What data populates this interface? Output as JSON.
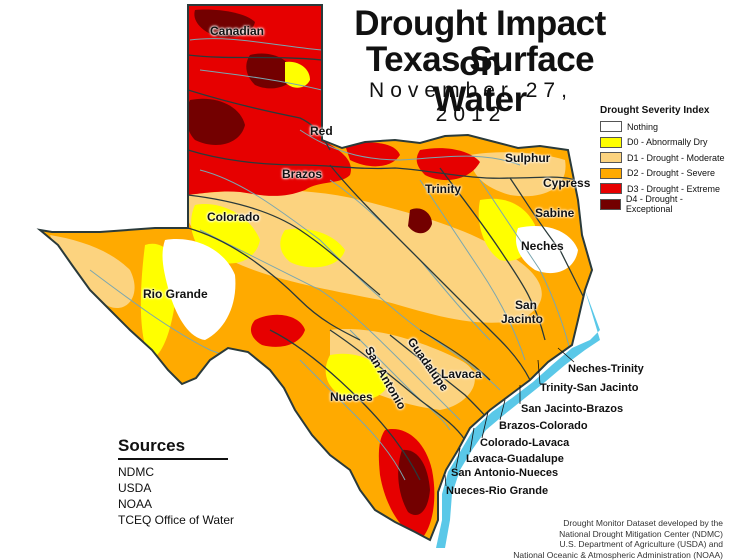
{
  "header": {
    "title_line1": "Drought Impact on",
    "title_line2": "Texas Surface Water",
    "date": "November 27, 2012"
  },
  "legend": {
    "title": "Drought Severity Index",
    "items": [
      {
        "label": "Nothing",
        "color": "#ffffff"
      },
      {
        "label": "D0 - Abnormally Dry",
        "color": "#ffff00"
      },
      {
        "label": "D1 - Drought - Moderate",
        "color": "#fcd37f"
      },
      {
        "label": "D2 - Drought - Severe",
        "color": "#ffaa00"
      },
      {
        "label": "D3 - Drought - Extreme",
        "color": "#e60000"
      },
      {
        "label": "D4 - Drought - Exceptional",
        "color": "#730000"
      }
    ]
  },
  "basins": {
    "canadian": "Canadian",
    "red": "Red",
    "brazos": "Brazos",
    "colorado": "Colorado",
    "rio_grande": "Rio Grande",
    "trinity": "Trinity",
    "sulphur": "Sulphur",
    "cypress": "Cypress",
    "sabine": "Sabine",
    "neches": "Neches",
    "san_jacinto_1": "San",
    "san_jacinto_2": "Jacinto",
    "san_antonio": "San Antonio",
    "guadalupe": "Guadalupe",
    "lavaca": "Lavaca",
    "nueces": "Nueces"
  },
  "coastal_basins": {
    "neches_trinity": "Neches-Trinity",
    "trinity_san_jacinto": "Trinity-San Jacinto",
    "san_jacinto_brazos": "San Jacinto-Brazos",
    "brazos_colorado": "Brazos-Colorado",
    "colorado_lavaca": "Colorado-Lavaca",
    "lavaca_guadalupe": "Lavaca-Guadalupe",
    "san_antonio_nueces": "San Antonio-Nueces",
    "nueces_rio_grande": "Nueces-Rio Grande"
  },
  "sources": {
    "title": "Sources",
    "items": [
      "NDMC",
      "USDA",
      "NOAA",
      "TCEQ Office of Water"
    ]
  },
  "credit": {
    "line1": "Drought Monitor Dataset developed by the",
    "line2": "National Drought Mitigation Center (NDMC)",
    "line3": "U.S. Department of Agriculture (USDA) and",
    "line4": "National Oceanic & Atmospheric Administration (NOAA)"
  },
  "colors": {
    "water": "#5ac8e8",
    "outline": "#2a3a3a",
    "river": "#7aa6b0"
  }
}
